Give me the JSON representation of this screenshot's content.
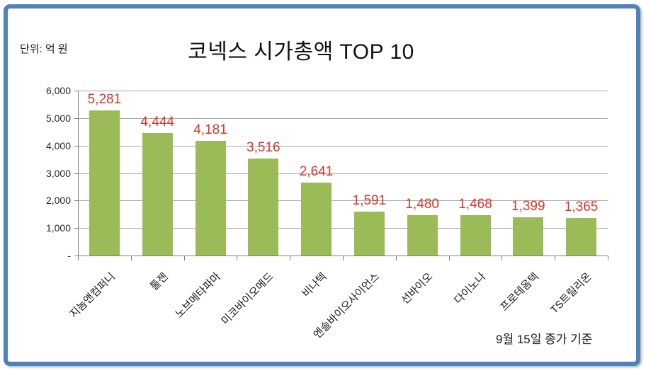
{
  "header": {
    "unit_label": "단위: 억 원",
    "title": "코넥스 시가총액 TOP 10"
  },
  "footer": {
    "caption": "9월 15일 종가 기준"
  },
  "colors": {
    "frame_border": "#4f81bd",
    "bar_fill": "#9bbb59",
    "value_label": "#d5372c",
    "gridline": "#a6a6a6",
    "axis": "#7f7f7f"
  },
  "chart_data": {
    "type": "bar",
    "title": "코넥스 시가총액 TOP 10",
    "unit": "억 원",
    "categories": [
      "지놈앤컴퍼니",
      "툴젠",
      "노브메타파마",
      "미코바이오메드",
      "비나텍",
      "엔솔바이오사이언스",
      "선바이오",
      "다이노나",
      "프로테옴텍",
      "TS트릴리온"
    ],
    "values": [
      5281,
      4444,
      4181,
      3516,
      2641,
      1591,
      1480,
      1468,
      1399,
      1365
    ],
    "value_labels": [
      "5,281",
      "4,444",
      "4,181",
      "3,516",
      "2,641",
      "1,591",
      "1,480",
      "1,468",
      "1,399",
      "1,365"
    ],
    "y_ticks": [
      {
        "value": 6000,
        "label": "6,000"
      },
      {
        "value": 5000,
        "label": "5,000"
      },
      {
        "value": 4000,
        "label": "4,000"
      },
      {
        "value": 3000,
        "label": "3,000"
      },
      {
        "value": 2000,
        "label": "2,000"
      },
      {
        "value": 1000,
        "label": "1,000"
      },
      {
        "value": 0,
        "label": "-"
      }
    ],
    "ylim": [
      0,
      6000
    ],
    "xlabel": "",
    "ylabel": "",
    "grid": true,
    "legend": "none",
    "annotation": "9월 15일 종가 기준"
  }
}
